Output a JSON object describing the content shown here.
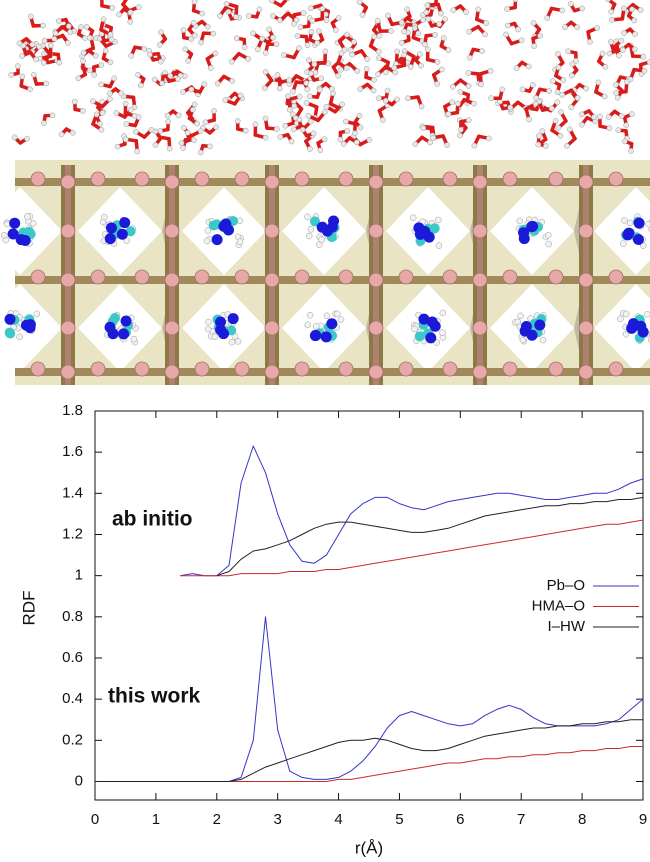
{
  "chart_data": {
    "type": "line",
    "y_label": "RDF",
    "x_label": "r(Å)",
    "x": [
      0,
      0.2,
      0.4,
      0.6,
      0.8,
      1,
      1.2,
      1.4,
      1.6,
      1.8,
      2,
      2.2,
      2.4,
      2.6,
      2.8,
      3,
      3.2,
      3.4,
      3.6,
      3.8,
      4,
      4.2,
      4.4,
      4.6,
      4.8,
      5,
      5.2,
      5.4,
      5.6,
      5.8,
      6,
      6.2,
      6.4,
      6.6,
      6.8,
      7,
      7.2,
      7.4,
      7.6,
      7.8,
      8,
      8.2,
      8.4,
      8.6,
      8.8,
      9
    ],
    "xlim": [
      0,
      9
    ],
    "xticks": [
      0,
      1,
      2,
      3,
      4,
      5,
      6,
      7,
      8,
      9
    ],
    "ylim": [
      -0.09,
      1.8
    ],
    "yticks": [
      0,
      0.2,
      0.4,
      0.6,
      0.8,
      1,
      1.2,
      1.4,
      1.6,
      1.8
    ],
    "legend": "right",
    "groups": [
      {
        "label": "ab initio",
        "series": [
          {
            "name": "Pb–O",
            "color": "#3535c8",
            "values": [
              null,
              null,
              null,
              null,
              null,
              null,
              null,
              1.0,
              1.01,
              1.0,
              1.0,
              1.05,
              1.45,
              1.63,
              1.5,
              1.3,
              1.15,
              1.07,
              1.06,
              1.1,
              1.2,
              1.3,
              1.35,
              1.38,
              1.38,
              1.35,
              1.33,
              1.32,
              1.34,
              1.36,
              1.37,
              1.38,
              1.39,
              1.4,
              1.4,
              1.39,
              1.38,
              1.37,
              1.37,
              1.38,
              1.39,
              1.4,
              1.4,
              1.42,
              1.45,
              1.47
            ]
          },
          {
            "name": "HMA–O",
            "color": "#cc2a2a",
            "values": [
              null,
              null,
              null,
              null,
              null,
              null,
              null,
              1.0,
              1.0,
              1.0,
              1.0,
              1.0,
              1.01,
              1.01,
              1.01,
              1.01,
              1.02,
              1.02,
              1.02,
              1.03,
              1.03,
              1.04,
              1.05,
              1.06,
              1.07,
              1.08,
              1.09,
              1.1,
              1.11,
              1.12,
              1.13,
              1.14,
              1.15,
              1.16,
              1.17,
              1.18,
              1.19,
              1.2,
              1.21,
              1.22,
              1.23,
              1.24,
              1.25,
              1.25,
              1.26,
              1.27
            ]
          },
          {
            "name": "I–HW",
            "color": "#222222",
            "values": [
              null,
              null,
              null,
              null,
              null,
              null,
              null,
              null,
              null,
              null,
              1.0,
              1.02,
              1.08,
              1.12,
              1.13,
              1.15,
              1.17,
              1.2,
              1.23,
              1.25,
              1.26,
              1.26,
              1.25,
              1.24,
              1.23,
              1.22,
              1.21,
              1.21,
              1.22,
              1.23,
              1.25,
              1.27,
              1.29,
              1.3,
              1.31,
              1.32,
              1.33,
              1.34,
              1.34,
              1.35,
              1.35,
              1.36,
              1.36,
              1.37,
              1.37,
              1.38
            ]
          }
        ]
      },
      {
        "label": "this work",
        "series": [
          {
            "color": "#3535c8",
            "values": [
              0,
              0,
              0,
              0,
              0,
              0,
              0,
              0,
              0,
              0,
              0,
              0,
              0.02,
              0.2,
              0.8,
              0.25,
              0.05,
              0.02,
              0.01,
              0.01,
              0.02,
              0.05,
              0.1,
              0.17,
              0.26,
              0.32,
              0.34,
              0.32,
              0.3,
              0.28,
              0.27,
              0.28,
              0.32,
              0.35,
              0.37,
              0.35,
              0.31,
              0.28,
              0.27,
              0.27,
              0.27,
              0.27,
              0.28,
              0.3,
              0.35,
              0.4
            ]
          },
          {
            "color": "#cc2a2a",
            "values": [
              0,
              0,
              0,
              0,
              0,
              0,
              0,
              0,
              0,
              0,
              0,
              0,
              0,
              0,
              0,
              0,
              0,
              0,
              0,
              0,
              0.01,
              0.01,
              0.02,
              0.03,
              0.04,
              0.05,
              0.06,
              0.07,
              0.08,
              0.09,
              0.09,
              0.1,
              0.11,
              0.11,
              0.12,
              0.12,
              0.13,
              0.13,
              0.14,
              0.14,
              0.15,
              0.15,
              0.16,
              0.16,
              0.17,
              0.17
            ]
          },
          {
            "color": "#222222",
            "values": [
              0,
              0,
              0,
              0,
              0,
              0,
              0,
              0,
              0,
              0,
              0,
              0,
              0.01,
              0.04,
              0.07,
              0.09,
              0.11,
              0.13,
              0.15,
              0.17,
              0.19,
              0.2,
              0.2,
              0.21,
              0.2,
              0.18,
              0.16,
              0.15,
              0.15,
              0.16,
              0.18,
              0.2,
              0.22,
              0.23,
              0.24,
              0.25,
              0.26,
              0.26,
              0.27,
              0.27,
              0.28,
              0.28,
              0.29,
              0.29,
              0.3,
              0.3
            ]
          }
        ]
      }
    ]
  }
}
